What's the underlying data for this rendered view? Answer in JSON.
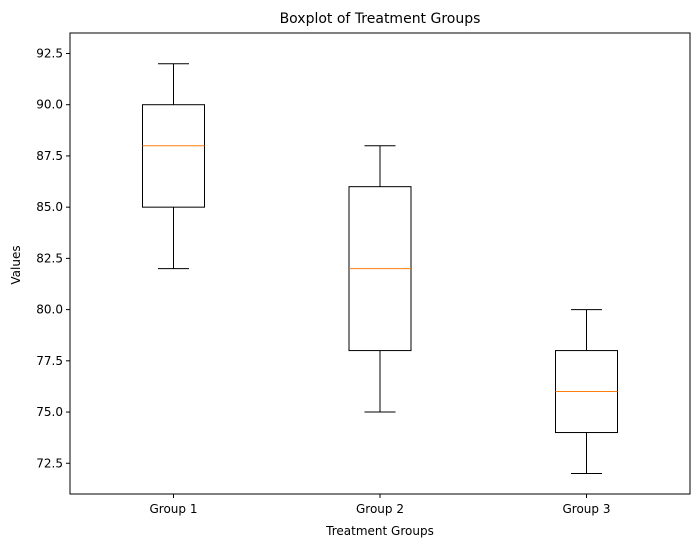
{
  "chart_data": {
    "type": "boxplot",
    "title": "Boxplot of Treatment Groups",
    "xlabel": "Treatment Groups",
    "ylabel": "Values",
    "ylim": [
      71.0,
      93.5
    ],
    "yticks": [
      72.5,
      75.0,
      77.5,
      80.0,
      82.5,
      85.0,
      87.5,
      90.0,
      92.5
    ],
    "ytick_labels": [
      "72.5",
      "75.0",
      "77.5",
      "80.0",
      "82.5",
      "85.0",
      "87.5",
      "90.0",
      "92.5"
    ],
    "categories": [
      "Group 1",
      "Group 2",
      "Group 3"
    ],
    "boxes": [
      {
        "category": "Group 1",
        "whisker_low": 82,
        "q1": 85,
        "median": 88,
        "q3": 90,
        "whisker_high": 92
      },
      {
        "category": "Group 2",
        "whisker_low": 75,
        "q1": 78,
        "median": 82,
        "q3": 86,
        "whisker_high": 88
      },
      {
        "category": "Group 3",
        "whisker_low": 72,
        "q1": 74,
        "median": 76,
        "q3": 78,
        "whisker_high": 80
      }
    ],
    "grid": false,
    "colors": {
      "box": "#000000",
      "median": "#ff7f0e",
      "axes": "#000000",
      "background": "#ffffff"
    }
  }
}
